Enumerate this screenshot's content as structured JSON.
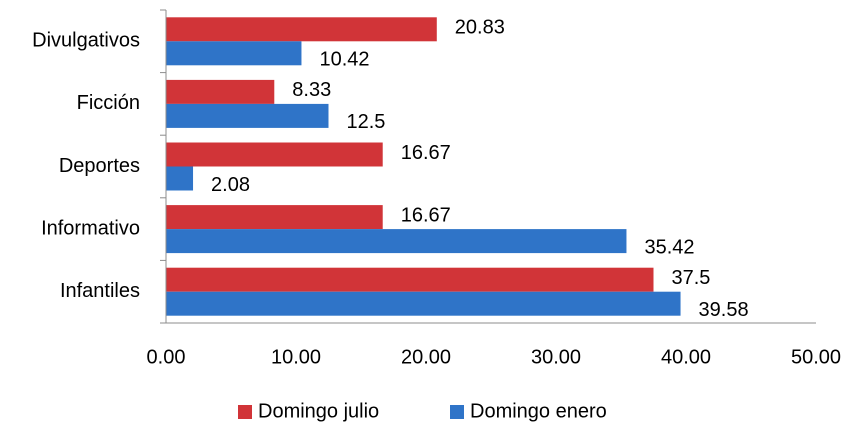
{
  "chart_data": {
    "type": "bar",
    "orientation": "horizontal",
    "categories": [
      "Divulgativos",
      "Ficción",
      "Deportes",
      "Informativo",
      "Infantiles"
    ],
    "series": [
      {
        "name": "Domingo julio",
        "color": "#D13438",
        "values": [
          20.83,
          8.33,
          16.67,
          16.67,
          37.5
        ],
        "labels": [
          "20.83",
          "8.33",
          "16.67",
          "16.67",
          "37.5"
        ]
      },
      {
        "name": "Domingo enero",
        "color": "#2F74C8",
        "values": [
          10.42,
          12.5,
          2.08,
          35.42,
          39.58
        ],
        "labels": [
          "10.42",
          "12.5",
          "2.08",
          "35.42",
          "39.58"
        ]
      }
    ],
    "xlim": [
      0,
      50
    ],
    "xticks": [
      "0.00",
      "10.00",
      "20.00",
      "30.00",
      "40.00",
      "50.00"
    ],
    "grid": false,
    "legend_position": "bottom"
  }
}
